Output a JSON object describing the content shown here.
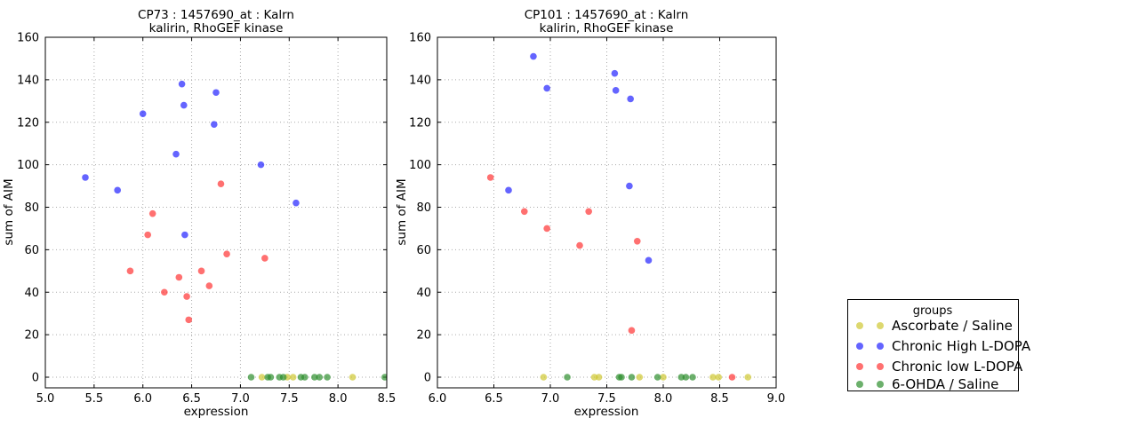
{
  "figure": {
    "background": "#ffffff",
    "frame_color": "#000000",
    "grid_color": "#aaaaaa",
    "marker_opacity": 0.7,
    "legend": {
      "title": "groups"
    },
    "groups": [
      {
        "label": "Ascorbate / Saline",
        "color": "#cfc832"
      },
      {
        "label": "Chronic High L-DOPA",
        "color": "#2222ff"
      },
      {
        "label": "Chronic low L-DOPA",
        "color": "#ff3333"
      },
      {
        "label": "6-OHDA / Saline",
        "color": "#2d8f2d"
      }
    ]
  },
  "chart_data": [
    {
      "type": "scatter",
      "title": "CP73 : 1457690_at : Kalrn",
      "subtitle": "kalirin, RhoGEF kinase",
      "xlabel": "expression",
      "ylabel": "sum of AIM",
      "xlim": [
        5.0,
        8.5
      ],
      "ylim": [
        0,
        160
      ],
      "grid": true,
      "legend_position": "outside-right",
      "xtick_labels": [
        "5.0",
        "5.5",
        "6.0",
        "6.5",
        "7.0",
        "7.5",
        "8.0",
        "8.5"
      ],
      "ytick_labels": [
        "0",
        "20",
        "40",
        "60",
        "80",
        "100",
        "120",
        "140",
        "160"
      ],
      "series": [
        {
          "name": "Ascorbate / Saline",
          "color": "#cfc832",
          "points": [
            [
              7.22,
              0
            ],
            [
              7.48,
              0
            ],
            [
              7.54,
              0
            ],
            [
              8.15,
              0
            ]
          ]
        },
        {
          "name": "Chronic High L-DOPA",
          "color": "#2222ff",
          "points": [
            [
              5.41,
              94
            ],
            [
              5.74,
              88
            ],
            [
              6.0,
              124
            ],
            [
              6.34,
              105
            ],
            [
              6.4,
              138
            ],
            [
              6.42,
              128
            ],
            [
              6.43,
              67
            ],
            [
              6.73,
              119
            ],
            [
              6.75,
              134
            ],
            [
              7.21,
              100
            ],
            [
              7.57,
              82
            ]
          ]
        },
        {
          "name": "Chronic low L-DOPA",
          "color": "#ff3333",
          "points": [
            [
              5.87,
              50
            ],
            [
              6.05,
              67
            ],
            [
              6.1,
              77
            ],
            [
              6.22,
              40
            ],
            [
              6.37,
              47
            ],
            [
              6.45,
              38
            ],
            [
              6.47,
              27
            ],
            [
              6.6,
              50
            ],
            [
              6.68,
              43
            ],
            [
              6.8,
              91
            ],
            [
              6.86,
              58
            ],
            [
              7.25,
              56
            ]
          ]
        },
        {
          "name": "6-OHDA / Saline",
          "color": "#2d8f2d",
          "points": [
            [
              7.11,
              0
            ],
            [
              7.28,
              0
            ],
            [
              7.31,
              0
            ],
            [
              7.4,
              0
            ],
            [
              7.44,
              0
            ],
            [
              7.62,
              0
            ],
            [
              7.66,
              0
            ],
            [
              7.76,
              0
            ],
            [
              7.81,
              0
            ],
            [
              7.89,
              0
            ],
            [
              8.48,
              0
            ]
          ]
        }
      ]
    },
    {
      "type": "scatter",
      "title": "CP101 : 1457690_at : Kalrn",
      "subtitle": "kalirin, RhoGEF kinase",
      "xlabel": "expression",
      "ylabel": "sum of AIM",
      "xlim": [
        6.0,
        9.0
      ],
      "ylim": [
        0,
        160
      ],
      "grid": true,
      "legend_position": "outside-right",
      "xtick_labels": [
        "6.0",
        "6.5",
        "7.0",
        "7.5",
        "8.0",
        "8.5",
        "9.0"
      ],
      "ytick_labels": [
        "0",
        "20",
        "40",
        "60",
        "80",
        "100",
        "120",
        "140",
        "160"
      ],
      "series": [
        {
          "name": "Ascorbate / Saline",
          "color": "#cfc832",
          "points": [
            [
              6.94,
              0
            ],
            [
              7.39,
              0
            ],
            [
              7.43,
              0
            ],
            [
              7.79,
              0
            ],
            [
              8.0,
              0
            ],
            [
              8.44,
              0
            ],
            [
              8.49,
              0
            ],
            [
              8.75,
              0
            ]
          ]
        },
        {
          "name": "Chronic High L-DOPA",
          "color": "#2222ff",
          "points": [
            [
              6.63,
              88
            ],
            [
              6.85,
              151
            ],
            [
              6.97,
              136
            ],
            [
              7.57,
              143
            ],
            [
              7.58,
              135
            ],
            [
              7.7,
              90
            ],
            [
              7.71,
              131
            ],
            [
              7.87,
              55
            ]
          ]
        },
        {
          "name": "Chronic low L-DOPA",
          "color": "#ff3333",
          "points": [
            [
              6.47,
              94
            ],
            [
              6.77,
              78
            ],
            [
              6.97,
              70
            ],
            [
              7.26,
              62
            ],
            [
              7.34,
              78
            ],
            [
              7.72,
              22
            ],
            [
              7.77,
              64
            ],
            [
              8.61,
              0
            ]
          ]
        },
        {
          "name": "6-OHDA / Saline",
          "color": "#2d8f2d",
          "points": [
            [
              7.15,
              0
            ],
            [
              7.61,
              0
            ],
            [
              7.63,
              0
            ],
            [
              7.72,
              0
            ],
            [
              7.95,
              0
            ],
            [
              8.16,
              0
            ],
            [
              8.2,
              0
            ],
            [
              8.26,
              0
            ]
          ]
        }
      ]
    }
  ]
}
